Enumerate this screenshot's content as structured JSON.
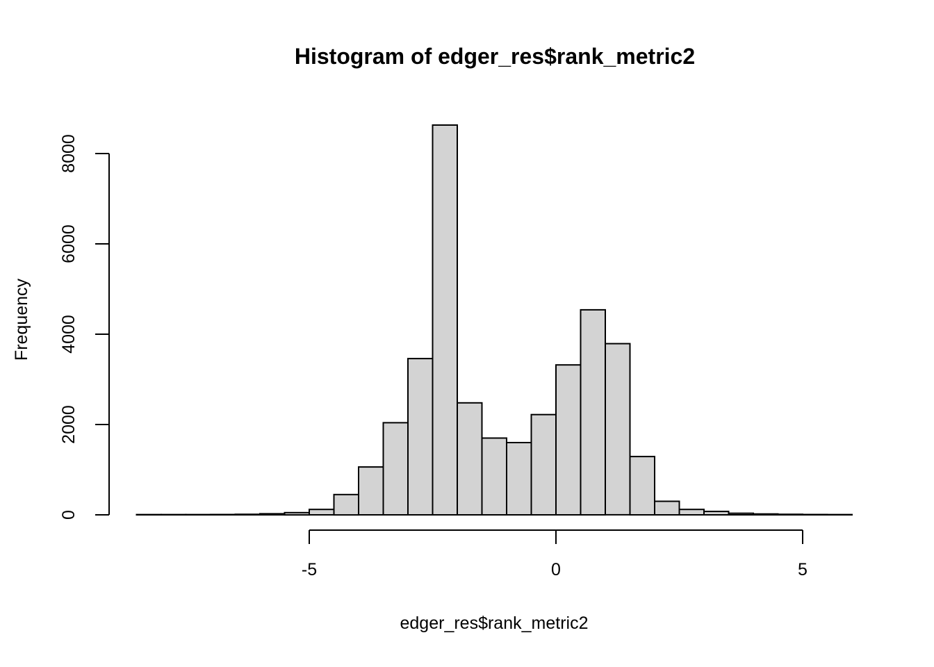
{
  "chart_data": {
    "type": "bar",
    "subtype": "histogram",
    "title": "Histogram of edger_res$rank_metric2",
    "xlabel": "edger_res$rank_metric2",
    "ylabel": "Frequency",
    "bin_start": -8.5,
    "bin_width": 0.5,
    "bin_edges": [
      -8.5,
      -8.0,
      -7.5,
      -7.0,
      -6.5,
      -6.0,
      -5.5,
      -5.0,
      -4.5,
      -4.0,
      -3.5,
      -3.0,
      -2.5,
      -2.0,
      -1.5,
      -1.0,
      -0.5,
      0.0,
      0.5,
      1.0,
      1.5,
      2.0,
      2.5,
      3.0,
      3.5,
      4.0,
      4.5,
      5.0,
      5.5,
      6.0
    ],
    "counts": [
      3,
      4,
      5,
      8,
      12,
      25,
      50,
      120,
      450,
      1060,
      2040,
      3460,
      8630,
      2480,
      1700,
      1600,
      2220,
      3320,
      4540,
      3790,
      1290,
      300,
      120,
      75,
      35,
      20,
      12,
      8,
      4
    ],
    "x_ticks": [
      -5,
      0,
      5
    ],
    "x_tick_labels": [
      "-5",
      "0",
      "5"
    ],
    "y_ticks": [
      0,
      2000,
      4000,
      6000,
      8000
    ],
    "y_tick_labels": [
      "0",
      "2000",
      "4000",
      "6000",
      "8000"
    ],
    "xlim": [
      -8.5,
      6.0
    ],
    "ylim": [
      0,
      8000
    ],
    "grid": "off",
    "legend": "none",
    "bar_fill": "#d3d3d3",
    "bar_stroke": "#000000",
    "axis_color": "#000000",
    "background": "#ffffff"
  }
}
